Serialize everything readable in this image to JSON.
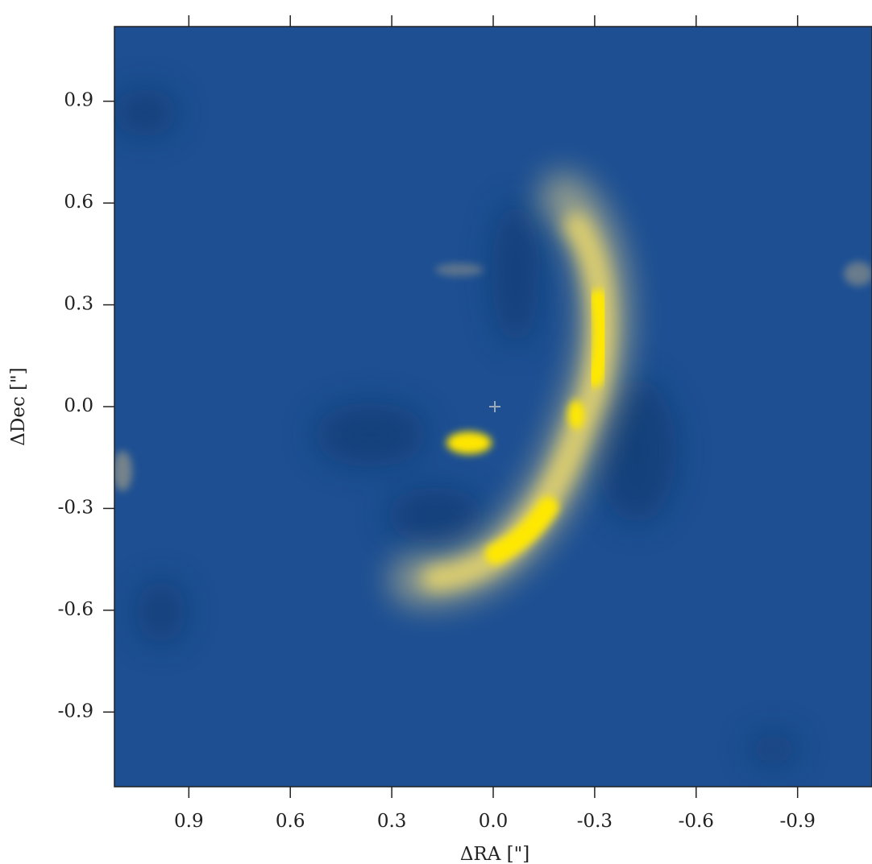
{
  "chart_data": {
    "type": "image",
    "xlabel": "ΔRA [\"]",
    "ylabel": "ΔDec [\"]",
    "xlim": [
      1.12,
      -1.12
    ],
    "ylim": [
      -1.12,
      1.12
    ],
    "xticks": [
      0.9,
      0.6,
      0.3,
      {
        "value": 0,
        "label": "0.0"
      },
      -0.3,
      -0.6,
      -0.9
    ],
    "yticks": [
      0.9,
      0.6,
      0.3,
      {
        "value": 0,
        "label": "0.0"
      },
      -0.3,
      -0.6,
      -0.9
    ],
    "color": "#1d4f92"
  }
}
